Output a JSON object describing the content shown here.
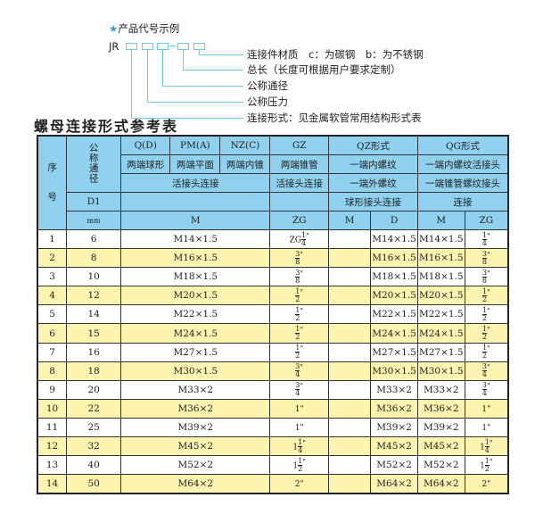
{
  "diagram": {
    "heading": "产品代号示例",
    "heading_icon": "star-icon",
    "code_prefix": "JR",
    "code_dash": "-",
    "labels": [
      "连接件材质　c：为碳钢　b：为不锈钢",
      "总长（长度可根据用户要求定制）",
      "公称通径",
      "公称压力",
      "连接形式：见金属软管常用结构形式表"
    ]
  },
  "table_title": "螺母连接形式参考表",
  "header": {
    "seq": "序\n\n\n号",
    "dn": "公称通径",
    "q": "Q(D)",
    "pm": "PM(A)",
    "nz": "NZ(C)",
    "gz": "GZ",
    "qz": "QZ形式",
    "qg": "QG形式",
    "q2": "两端球形",
    "pm2": "两端平面",
    "nz2": "两端内锥",
    "gz2": "两端锥管",
    "qz2": "一端内螺纹",
    "qg2": "一端内螺纹活接头",
    "m3": "活接头连接",
    "gz3": "活接头连接",
    "qz3": "一端外螺纹",
    "qg3": "一端锥管螺纹接头",
    "d1": "D1",
    "qz4": "球形接头连接",
    "qg4": "连接",
    "mm": "mm",
    "m": "M",
    "zg": "ZG",
    "qz_m": "M",
    "qz_d": "D",
    "qg_m": "M",
    "qg_zg": "ZG"
  },
  "colors": {
    "header": "#8fd1ef",
    "alt_row": "#fdf4b0",
    "diagram_line": "#6cc9e8"
  },
  "rows": [
    {
      "no": "1",
      "d1": "6",
      "m": "M14×1.5",
      "zg": {
        "w": "ZG",
        "n": "1",
        "d": "4",
        "u": "\""
      },
      "qz_m": "",
      "qz_d": "M14×1.5",
      "qg_m": "M14×1.5",
      "qg_zg": {
        "w": "",
        "n": "1",
        "d": "4",
        "u": "\""
      }
    },
    {
      "no": "2",
      "d1": "8",
      "m": "M16×1.5",
      "zg": {
        "w": "",
        "n": "3",
        "d": "8",
        "u": "\""
      },
      "qz_m": "",
      "qz_d": "M16×1.5",
      "qg_m": "M16×1.5",
      "qg_zg": {
        "w": "",
        "n": "3",
        "d": "8",
        "u": "\""
      }
    },
    {
      "no": "3",
      "d1": "10",
      "m": "M18×1.5",
      "zg": {
        "w": "",
        "n": "3",
        "d": "8",
        "u": "\""
      },
      "qz_m": "",
      "qz_d": "M18×1.5",
      "qg_m": "M18×1.5",
      "qg_zg": {
        "w": "",
        "n": "3",
        "d": "8",
        "u": "\""
      }
    },
    {
      "no": "4",
      "d1": "12",
      "m": "M20×1.5",
      "zg": {
        "w": "",
        "n": "1",
        "d": "2",
        "u": "\""
      },
      "qz_m": "",
      "qz_d": "M20×1.5",
      "qg_m": "M20×1.5",
      "qg_zg": {
        "w": "",
        "n": "1",
        "d": "2",
        "u": "\""
      }
    },
    {
      "no": "5",
      "d1": "14",
      "m": "M22×1.5",
      "zg": {
        "w": "",
        "n": "1",
        "d": "2",
        "u": "\""
      },
      "qz_m": "",
      "qz_d": "M22×1.5",
      "qg_m": "M22×1.5",
      "qg_zg": {
        "w": "",
        "n": "1",
        "d": "2",
        "u": "\""
      }
    },
    {
      "no": "6",
      "d1": "15",
      "m": "M24×1.5",
      "zg": {
        "w": "",
        "n": "1",
        "d": "2",
        "u": "\""
      },
      "qz_m": "",
      "qz_d": "M24×1.5",
      "qg_m": "M24×1.5",
      "qg_zg": {
        "w": "",
        "n": "1",
        "d": "2",
        "u": "\""
      }
    },
    {
      "no": "7",
      "d1": "16",
      "m": "M27×1.5",
      "zg": {
        "w": "",
        "n": "1",
        "d": "2",
        "u": "\""
      },
      "qz_m": "",
      "qz_d": "M27×1.5",
      "qg_m": "M27×1.5",
      "qg_zg": {
        "w": "",
        "n": "1",
        "d": "2",
        "u": "\""
      }
    },
    {
      "no": "8",
      "d1": "18",
      "m": "M30×1.5",
      "zg": {
        "w": "",
        "n": "3",
        "d": "4",
        "u": "\""
      },
      "qz_m": "",
      "qz_d": "M30×1.5",
      "qg_m": "M30×1.5",
      "qg_zg": {
        "w": "",
        "n": "3",
        "d": "4",
        "u": "\""
      }
    },
    {
      "no": "9",
      "d1": "20",
      "m": "M33×2",
      "zg": {
        "w": "",
        "n": "3",
        "d": "4",
        "u": "\""
      },
      "qz_m": "",
      "qz_d": "M33×2",
      "qg_m": "M33×2",
      "qg_zg": {
        "w": "",
        "n": "3",
        "d": "4",
        "u": "\""
      }
    },
    {
      "no": "10",
      "d1": "22",
      "m": "M36×2",
      "zg": {
        "w": "1\"",
        "n": "",
        "d": "",
        "u": ""
      },
      "qz_m": "",
      "qz_d": "M36×2",
      "qg_m": "M36×2",
      "qg_zg": {
        "w": "1\"",
        "n": "",
        "d": "",
        "u": ""
      }
    },
    {
      "no": "11",
      "d1": "25",
      "m": "M39×2",
      "zg": {
        "w": "1\"",
        "n": "",
        "d": "",
        "u": ""
      },
      "qz_m": "",
      "qz_d": "M39×2",
      "qg_m": "M39×2",
      "qg_zg": {
        "w": "1\"",
        "n": "",
        "d": "",
        "u": ""
      }
    },
    {
      "no": "12",
      "d1": "32",
      "m": "M45×2",
      "zg": {
        "w": "1",
        "n": "1",
        "d": "4",
        "u": "\""
      },
      "qz_m": "",
      "qz_d": "M45×2",
      "qg_m": "M45×2",
      "qg_zg": {
        "w": "1",
        "n": "1",
        "d": "4",
        "u": "\""
      }
    },
    {
      "no": "13",
      "d1": "40",
      "m": "M52×2",
      "zg": {
        "w": "1",
        "n": "1",
        "d": "2",
        "u": "\""
      },
      "qz_m": "",
      "qz_d": "M52×2",
      "qg_m": "M52×2",
      "qg_zg": {
        "w": "1",
        "n": "1",
        "d": "2",
        "u": "\""
      }
    },
    {
      "no": "14",
      "d1": "50",
      "m": "M64×2",
      "zg": {
        "w": "2\"",
        "n": "",
        "d": "",
        "u": ""
      },
      "qz_m": "",
      "qz_d": "M64×2",
      "qg_m": "M64×2",
      "qg_zg": {
        "w": "2\"",
        "n": "",
        "d": "",
        "u": ""
      }
    }
  ]
}
